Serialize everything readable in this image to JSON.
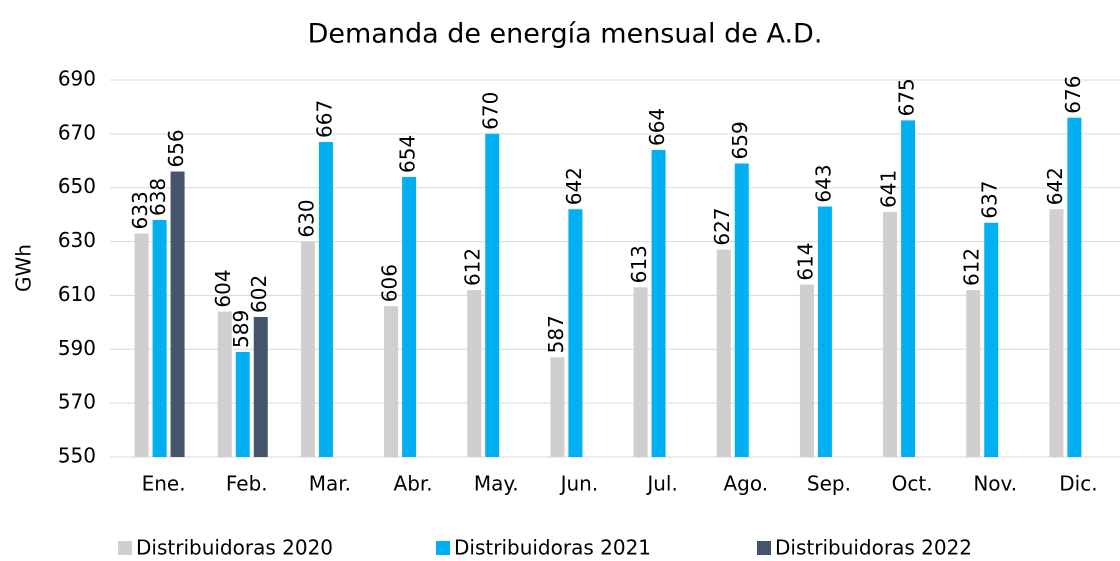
{
  "chart_data": {
    "type": "bar",
    "title": "Demanda de energía mensual de A.D.",
    "y_label": "GWh",
    "categories": [
      "Ene.",
      "Feb.",
      "Mar.",
      "Abr.",
      "May.",
      "Jun.",
      "Jul.",
      "Ago.",
      "Sep.",
      "Oct.",
      "Nov.",
      "Dic."
    ],
    "series": [
      {
        "name": "Distribuidoras 2020",
        "color": "#d0cece",
        "values": [
          633,
          604,
          630,
          606,
          612,
          587,
          613,
          627,
          614,
          641,
          612,
          642
        ]
      },
      {
        "name": "Distribuidoras 2021",
        "color": "#00b0f0",
        "values": [
          638,
          589,
          667,
          654,
          670,
          642,
          664,
          659,
          643,
          675,
          637,
          676
        ]
      },
      {
        "name": "Distribuidoras 2022",
        "color": "#44546a",
        "values": [
          656,
          602,
          null,
          null,
          null,
          null,
          null,
          null,
          null,
          null,
          null,
          null
        ]
      }
    ],
    "ylim": [
      550,
      690
    ],
    "yticks": [
      550,
      570,
      590,
      610,
      630,
      650,
      670,
      690
    ],
    "grid": true,
    "legend": "bottom"
  }
}
